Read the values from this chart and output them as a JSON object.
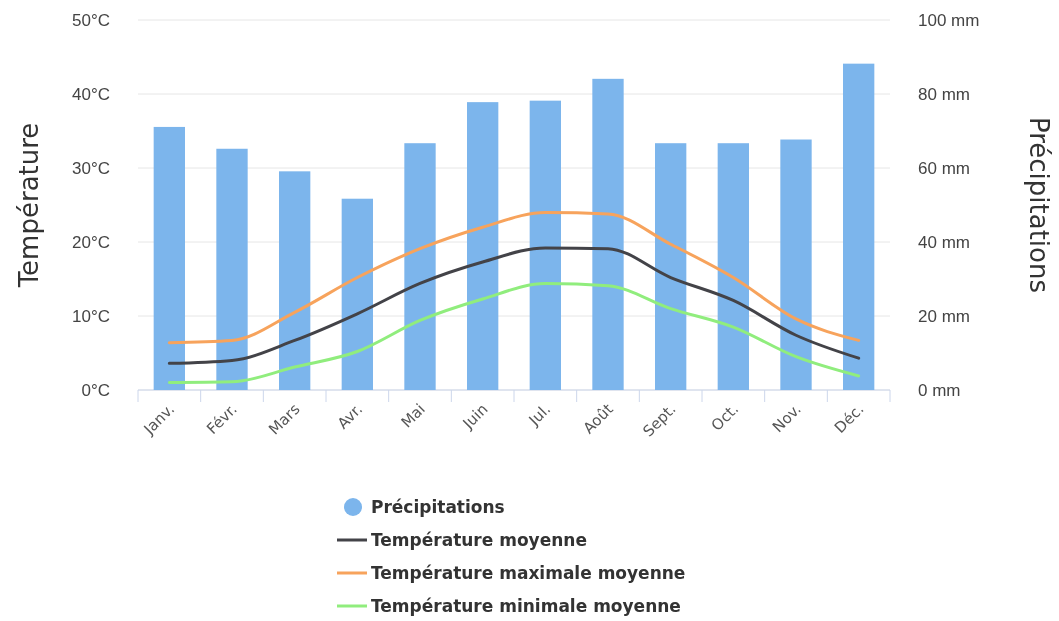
{
  "chart_data": {
    "type": "bar",
    "categories": [
      "Janv.",
      "Févr.",
      "Mars",
      "Avr.",
      "Mai",
      "Juin",
      "Jul.",
      "Août",
      "Sept.",
      "Oct.",
      "Nov.",
      "Déc."
    ],
    "ylabel": "Température",
    "y2label": "Précipitations",
    "ylim": [
      0,
      50
    ],
    "yticks": [
      {
        "value": 0,
        "label": "0°C"
      },
      {
        "value": 10,
        "label": "10°C"
      },
      {
        "value": 20,
        "label": "20°C"
      },
      {
        "value": 30,
        "label": "30°C"
      },
      {
        "value": 40,
        "label": "40°C"
      },
      {
        "value": 50,
        "label": "50°C"
      }
    ],
    "y2lim": [
      0,
      100
    ],
    "y2ticks": [
      {
        "value": 0,
        "label": "0 mm"
      },
      {
        "value": 20,
        "label": "20 mm"
      },
      {
        "value": 40,
        "label": "40 mm"
      },
      {
        "value": 60,
        "label": "60 mm"
      },
      {
        "value": 80,
        "label": "80 mm"
      },
      {
        "value": 100,
        "label": "100 mm"
      }
    ],
    "grid": "y",
    "legend": "bottom",
    "series": [
      {
        "name": "Précipitations",
        "axis": "y2",
        "color": "#7cb5ec",
        "values": [
          71.1,
          65.2,
          59.1,
          51.7,
          66.7,
          77.8,
          78.2,
          84.1,
          66.7,
          66.7,
          67.7,
          88.2
        ]
      },
      {
        "name": "Température moyenne",
        "type": "line",
        "color": "#434348",
        "values": [
          3.6,
          4.0,
          6.7,
          10.3,
          14.4,
          17.3,
          19.2,
          19.1,
          15.2,
          12.1,
          7.4,
          4.3
        ]
      },
      {
        "name": "Température maximale moyenne",
        "type": "line",
        "color": "#f7a35c",
        "values": [
          6.4,
          6.7,
          10.5,
          15.2,
          19.1,
          22.0,
          24.0,
          23.8,
          19.7,
          15.2,
          9.6,
          6.7
        ]
      },
      {
        "name": "Température minimale moyenne",
        "type": "line",
        "color": "#90ed7d",
        "values": [
          1.0,
          1.1,
          3.1,
          5.2,
          9.4,
          12.3,
          14.4,
          14.1,
          11.0,
          8.5,
          4.5,
          1.9
        ]
      }
    ]
  }
}
